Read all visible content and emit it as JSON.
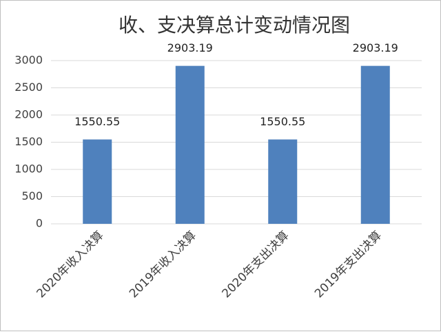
{
  "chart_data": {
    "type": "bar",
    "title": "收、支决算总计变动情况图",
    "categories": [
      "2020年收入决算",
      "2019年收入决算",
      "2020年支出决算",
      "2019年支出决算"
    ],
    "values": [
      1550.55,
      2903.19,
      1550.55,
      2903.19
    ],
    "color": "#4f81bd",
    "ylim": [
      0,
      3000
    ],
    "yticks": [
      0,
      500,
      1000,
      1500,
      2000,
      2500,
      3000
    ],
    "grid": true
  }
}
